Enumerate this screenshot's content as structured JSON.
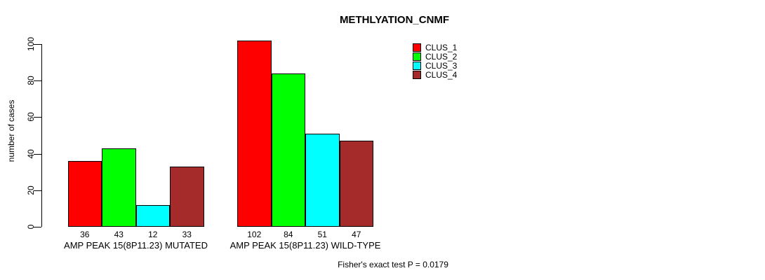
{
  "chart_data": {
    "type": "bar",
    "title": "METHLYATION_CNMF",
    "ylabel": "number of cases",
    "xlabel": "",
    "ylim": [
      0,
      100
    ],
    "yticks": [
      0,
      20,
      40,
      60,
      80,
      100
    ],
    "grid": false,
    "background": "#FFFFFF",
    "legend_position": "top-right",
    "categories": [
      "AMP PEAK 15(8P11.23) MUTATED",
      "AMP PEAK 15(8P11.23) WILD-TYPE"
    ],
    "series": [
      {
        "name": "CLUS_1",
        "color": "#FF0000",
        "values": [
          36,
          102
        ]
      },
      {
        "name": "CLUS_2",
        "color": "#00FF00",
        "values": [
          43,
          84
        ]
      },
      {
        "name": "CLUS_3",
        "color": "#00FFFF",
        "values": [
          12,
          51
        ]
      },
      {
        "name": "CLUS_4",
        "color": "#A52A2A",
        "values": [
          33,
          47
        ]
      }
    ],
    "bar_value_labels": [
      [
        36,
        43,
        12,
        33
      ],
      [
        102,
        84,
        51,
        47
      ]
    ],
    "annotation": "Fisher's exact test P = 0.0179"
  }
}
